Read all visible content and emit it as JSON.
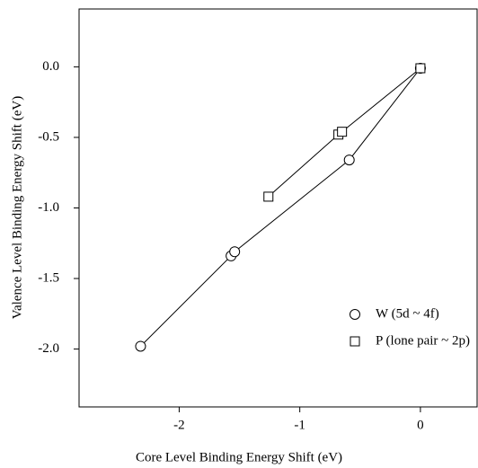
{
  "chart_data": {
    "type": "scatter",
    "xlabel": "Core Level Binding Energy Shift (eV)",
    "ylabel": "Valence Level Binding Energy Shift (eV)",
    "xlim": [
      -2.83,
      0.47
    ],
    "ylim": [
      -2.41,
      0.41
    ],
    "xticks": [
      -2,
      -1,
      0
    ],
    "yticks": [
      {
        "value": 0,
        "label": "0.0"
      },
      {
        "value": -0.5,
        "label": "-0.5"
      },
      {
        "value": -1,
        "label": "-1.0"
      },
      {
        "value": -1.5,
        "label": "-1.5"
      },
      {
        "value": -2,
        "label": "-2.0"
      }
    ],
    "series": [
      {
        "name": "W (5d ~ 4f)",
        "color": "#000000",
        "marker": "circle",
        "x": [
          -2.32,
          -1.57,
          -1.54,
          -0.59,
          0
        ],
        "values": [
          -1.98,
          -1.34,
          -1.31,
          -0.66,
          -0.01
        ]
      },
      {
        "name": "P (lone pair ~ 2p)",
        "color": "#000000",
        "marker": "square",
        "x": [
          -1.26,
          -0.68,
          -0.65,
          0
        ],
        "values": [
          -0.92,
          -0.48,
          -0.46,
          -0.01
        ]
      }
    ]
  }
}
